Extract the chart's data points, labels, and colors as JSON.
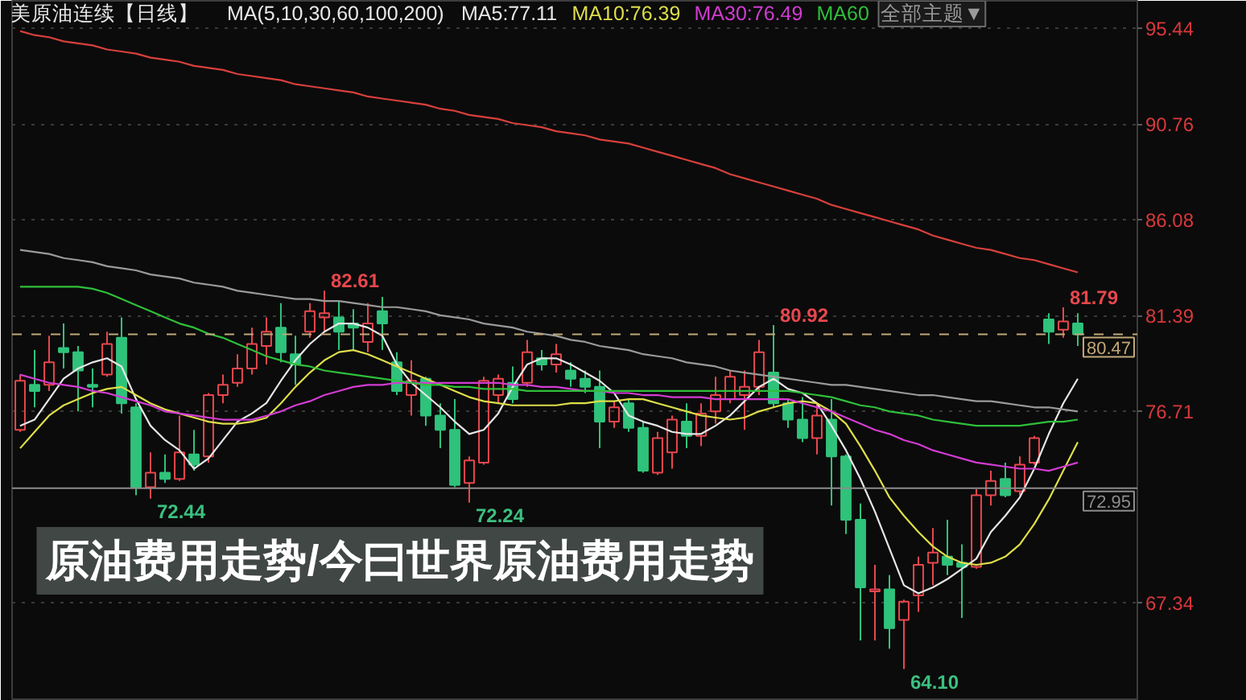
{
  "chart_data": {
    "type": "candlestick",
    "title": "原油费用走势/今曰世界原油费用走势",
    "subtitle": "美原油连续【日线】",
    "legend_title": "MA(5,10,30,60,100,200)",
    "legend": "top",
    "categories": [
      null,
      null,
      null,
      null,
      null,
      null,
      null,
      null,
      null,
      null,
      null,
      null,
      null,
      null,
      null,
      null,
      null,
      null,
      null,
      null,
      null,
      null,
      null,
      null,
      null,
      null,
      null,
      null,
      null,
      null,
      null,
      null,
      null,
      null,
      null,
      null,
      null,
      null,
      null,
      null,
      null,
      null,
      null,
      null,
      null,
      null,
      null,
      null,
      null,
      null,
      null,
      null,
      null,
      null,
      null,
      null,
      null,
      null,
      null,
      null,
      null,
      null,
      null,
      null,
      null,
      null,
      null,
      null,
      null,
      null,
      null,
      null,
      null,
      null
    ],
    "ohlc": [
      [
        75.8,
        78.5,
        75.7,
        78.2
      ],
      [
        78.0,
        79.7,
        76.9,
        77.7
      ],
      [
        78.0,
        80.4,
        77.7,
        79.1
      ],
      [
        79.8,
        81.0,
        78.8,
        79.6
      ],
      [
        79.6,
        79.9,
        76.7,
        78.7
      ],
      [
        78.0,
        78.8,
        76.9,
        77.9
      ],
      [
        78.5,
        80.6,
        78.4,
        80.0
      ],
      [
        80.3,
        81.3,
        76.6,
        77.1
      ],
      [
        76.9,
        77.1,
        72.6,
        73.0
      ],
      [
        73.0,
        74.7,
        72.44,
        73.7
      ],
      [
        73.7,
        74.6,
        73.2,
        73.4
      ],
      [
        73.4,
        76.5,
        73.3,
        74.7
      ],
      [
        74.6,
        75.8,
        73.8,
        74.1
      ],
      [
        74.5,
        77.6,
        74.2,
        77.5
      ],
      [
        77.5,
        78.5,
        77.1,
        78.0
      ],
      [
        78.1,
        79.5,
        77.9,
        78.8
      ],
      [
        78.8,
        80.8,
        78.5,
        80.0
      ],
      [
        79.9,
        81.3,
        79.0,
        80.6
      ],
      [
        80.8,
        82.0,
        79.1,
        79.6
      ],
      [
        79.5,
        80.4,
        78.0,
        79.0
      ],
      [
        80.6,
        82.0,
        80.3,
        81.6
      ],
      [
        81.3,
        82.61,
        80.6,
        81.5
      ],
      [
        81.3,
        82.1,
        79.7,
        80.6
      ],
      [
        81.0,
        81.7,
        79.7,
        80.8
      ],
      [
        80.1,
        82.0,
        79.6,
        81.0
      ],
      [
        81.6,
        82.3,
        79.7,
        81.0
      ],
      [
        79.1,
        79.6,
        77.5,
        77.7
      ],
      [
        77.5,
        79.2,
        76.5,
        78.2
      ],
      [
        78.3,
        78.4,
        76.0,
        76.5
      ],
      [
        76.5,
        77.1,
        74.9,
        75.8
      ],
      [
        75.8,
        77.3,
        73.0,
        73.1
      ],
      [
        73.2,
        74.5,
        72.24,
        74.3
      ],
      [
        74.2,
        78.4,
        74.1,
        78.2
      ],
      [
        77.5,
        78.5,
        77.1,
        78.3
      ],
      [
        78.1,
        78.9,
        77.1,
        77.3
      ],
      [
        78.1,
        80.2,
        77.9,
        79.6
      ],
      [
        79.3,
        79.7,
        78.7,
        79.0
      ],
      [
        79.0,
        80.0,
        78.6,
        79.5
      ],
      [
        78.7,
        79.1,
        77.9,
        78.3
      ],
      [
        78.3,
        78.7,
        77.6,
        77.9
      ],
      [
        77.9,
        78.7,
        74.9,
        76.2
      ],
      [
        76.2,
        77.2,
        75.9,
        76.9
      ],
      [
        77.1,
        77.3,
        75.7,
        75.9
      ],
      [
        75.9,
        76.2,
        73.7,
        73.8
      ],
      [
        73.7,
        75.7,
        73.6,
        75.4
      ],
      [
        74.7,
        76.5,
        73.9,
        76.3
      ],
      [
        76.2,
        77.1,
        74.9,
        75.5
      ],
      [
        75.5,
        77.1,
        75.0,
        76.6
      ],
      [
        76.7,
        78.4,
        76.1,
        77.5
      ],
      [
        77.3,
        78.7,
        77.1,
        78.4
      ],
      [
        77.5,
        78.7,
        75.8,
        77.9
      ],
      [
        77.9,
        80.2,
        77.5,
        79.6
      ],
      [
        78.6,
        80.92,
        76.9,
        77.1
      ],
      [
        77.1,
        77.3,
        75.9,
        76.3
      ],
      [
        76.3,
        77.4,
        75.2,
        75.4
      ],
      [
        75.4,
        77.1,
        74.6,
        76.5
      ],
      [
        76.3,
        77.3,
        72.1,
        74.5
      ],
      [
        74.5,
        74.6,
        70.7,
        71.4
      ],
      [
        71.4,
        72.2,
        65.5,
        68.1
      ],
      [
        67.9,
        69.2,
        65.5,
        68.0
      ],
      [
        68.0,
        68.7,
        65.1,
        66.1
      ],
      [
        66.5,
        67.5,
        64.1,
        67.4
      ],
      [
        67.7,
        69.6,
        66.9,
        69.2
      ],
      [
        69.3,
        71.0,
        68.2,
        69.8
      ],
      [
        69.6,
        71.4,
        68.7,
        69.2
      ],
      [
        69.3,
        70.2,
        66.6,
        69.1
      ],
      [
        69.1,
        72.9,
        69.0,
        72.6
      ],
      [
        72.6,
        73.8,
        72.1,
        73.3
      ],
      [
        73.4,
        74.2,
        72.5,
        72.6
      ],
      [
        72.8,
        74.5,
        72.6,
        74.1
      ],
      [
        74.2,
        75.5,
        74.1,
        75.4
      ],
      [
        81.2,
        81.5,
        80.0,
        80.6
      ],
      [
        80.7,
        81.79,
        80.3,
        81.1
      ],
      [
        81.0,
        81.5,
        79.9,
        80.47
      ]
    ],
    "value_labels": [
      null,
      null,
      null,
      null,
      null,
      null,
      null,
      null,
      null,
      "72.44",
      null,
      null,
      null,
      null,
      null,
      null,
      null,
      null,
      null,
      null,
      null,
      "82.61",
      null,
      null,
      null,
      null,
      null,
      null,
      null,
      null,
      null,
      "72.24",
      null,
      null,
      null,
      null,
      null,
      null,
      null,
      null,
      null,
      null,
      null,
      null,
      null,
      null,
      null,
      null,
      null,
      null,
      null,
      null,
      "80.92",
      null,
      null,
      null,
      null,
      null,
      null,
      null,
      null,
      "64.10",
      null,
      null,
      null,
      null,
      null,
      null,
      null,
      null,
      null,
      null,
      "81.79",
      null
    ],
    "colors": [
      "#e8474c",
      "#2fc27b",
      "#e8474c",
      "#2fc27b",
      "#2fc27b",
      "#2fc27b",
      "#e8474c",
      "#2fc27b",
      "#2fc27b",
      "#e8474c",
      "#2fc27b",
      "#e8474c",
      "#2fc27b",
      "#e8474c",
      "#e8474c",
      "#e8474c",
      "#e8474c",
      "#e8474c",
      "#2fc27b",
      "#2fc27b",
      "#e8474c",
      "#e8474c",
      "#2fc27b",
      "#2fc27b",
      "#e8474c",
      "#2fc27b",
      "#2fc27b",
      "#e8474c",
      "#2fc27b",
      "#2fc27b",
      "#2fc27b",
      "#e8474c",
      "#e8474c",
      "#e8474c",
      "#2fc27b",
      "#e8474c",
      "#2fc27b",
      "#e8474c",
      "#2fc27b",
      "#2fc27b",
      "#2fc27b",
      "#e8474c",
      "#2fc27b",
      "#2fc27b",
      "#e8474c",
      "#e8474c",
      "#2fc27b",
      "#e8474c",
      "#e8474c",
      "#e8474c",
      "#e8474c",
      "#e8474c",
      "#2fc27b",
      "#2fc27b",
      "#2fc27b",
      "#e8474c",
      "#2fc27b",
      "#2fc27b",
      "#2fc27b",
      "#e8474c",
      "#2fc27b",
      "#e8474c",
      "#e8474c",
      "#e8474c",
      "#2fc27b",
      "#2fc27b",
      "#e8474c",
      "#e8474c",
      "#2fc27b",
      "#e8474c",
      "#e8474c",
      "#2fc27b",
      "#e8474c",
      "#2fc27b"
    ],
    "series": [
      {
        "type": "line",
        "name": "MA5:77.11",
        "color": "#e6e6e6",
        "values": [
          76.0,
          76.3,
          77.3,
          78.3,
          78.8,
          79.1,
          79.3,
          78.9,
          77.3,
          76.0,
          75.3,
          74.8,
          73.9,
          74.4,
          75.3,
          76.2,
          76.6,
          77.11,
          78.2,
          79.2,
          80.0,
          80.6,
          81.0,
          81.0,
          80.8,
          80.4,
          79.0,
          78.1,
          77.5,
          76.9,
          76.2,
          75.6,
          75.8,
          76.6,
          77.9,
          79.0,
          79.3,
          79.3,
          79.0,
          78.6,
          78.2,
          77.6,
          76.5,
          76.2,
          76.0,
          75.7,
          75.6,
          75.6,
          76.0,
          76.5,
          77.2,
          77.9,
          78.3,
          77.8,
          77.6,
          77.1,
          76.0,
          74.8,
          73.4,
          71.8,
          70.0,
          68.2,
          67.8,
          68.1,
          68.5,
          69.0,
          69.5,
          70.8,
          71.6,
          72.5,
          73.9,
          75.6,
          77.1,
          78.3
        ]
      },
      {
        "type": "line",
        "name": "MA10:76.39",
        "color": "#dede4a",
        "values": [
          74.9,
          75.7,
          76.5,
          77.0,
          77.3,
          77.6,
          77.8,
          77.9,
          77.5,
          77.1,
          76.8,
          76.6,
          76.4,
          76.2,
          76.1,
          76.1,
          76.2,
          76.39,
          77.1,
          77.9,
          78.6,
          79.2,
          79.6,
          79.7,
          79.5,
          79.2,
          78.9,
          78.6,
          78.3,
          78.0,
          77.7,
          77.4,
          77.2,
          77.1,
          77.0,
          77.0,
          77.0,
          77.0,
          77.1,
          77.1,
          77.2,
          77.2,
          77.3,
          77.3,
          77.1,
          76.9,
          76.7,
          76.5,
          76.4,
          76.3,
          76.4,
          76.7,
          76.9,
          77.1,
          77.2,
          77.1,
          76.7,
          76.1,
          75.0,
          73.8,
          72.5,
          71.6,
          70.8,
          70.1,
          69.6,
          69.3,
          69.2,
          69.3,
          69.6,
          70.2,
          71.2,
          72.4,
          73.8,
          75.2
        ]
      },
      {
        "type": "line",
        "name": "MA30:76.49",
        "color": "#d23cd2",
        "values": [
          78.5,
          78.3,
          78.1,
          78.0,
          77.9,
          77.7,
          77.6,
          77.4,
          77.2,
          77.0,
          76.7,
          76.6,
          76.5,
          76.4,
          76.3,
          76.3,
          76.3,
          76.49,
          76.7,
          77.0,
          77.2,
          77.5,
          77.7,
          77.9,
          78.0,
          78.0,
          78.1,
          78.1,
          78.1,
          78.1,
          78.1,
          78.1,
          78.1,
          78.1,
          78.0,
          78.0,
          77.9,
          77.9,
          77.8,
          77.7,
          77.7,
          77.6,
          77.6,
          77.5,
          77.5,
          77.4,
          77.4,
          77.4,
          77.3,
          77.3,
          77.3,
          77.3,
          77.3,
          77.3,
          77.1,
          76.9,
          76.7,
          76.4,
          76.1,
          75.8,
          75.6,
          75.3,
          75.1,
          74.8,
          74.6,
          74.4,
          74.2,
          74.1,
          74.0,
          73.9,
          73.9,
          73.8,
          74.0,
          74.2
        ]
      },
      {
        "type": "line",
        "name": "MA60",
        "color": "#2fbf3a",
        "values": [
          82.8,
          82.8,
          82.8,
          82.8,
          82.8,
          82.7,
          82.5,
          82.2,
          81.9,
          81.6,
          81.3,
          81.0,
          80.8,
          80.5,
          80.3,
          80.0,
          79.7,
          79.4,
          79.2,
          79.0,
          78.9,
          78.7,
          78.6,
          78.5,
          78.4,
          78.3,
          78.2,
          78.1,
          78.0,
          78.0,
          77.9,
          77.9,
          77.8,
          77.8,
          77.8,
          77.7,
          77.7,
          77.7,
          77.7,
          77.7,
          77.7,
          77.7,
          77.7,
          77.7,
          77.7,
          77.7,
          77.7,
          77.7,
          77.7,
          77.7,
          77.7,
          77.7,
          77.7,
          77.7,
          77.6,
          77.5,
          77.4,
          77.2,
          77.0,
          76.9,
          76.7,
          76.6,
          76.5,
          76.3,
          76.2,
          76.1,
          76.0,
          76.0,
          76.0,
          76.0,
          76.1,
          76.2,
          76.2,
          76.3
        ]
      },
      {
        "type": "line",
        "color": "#9a9a9a",
        "values": [
          84.6,
          84.5,
          84.4,
          84.2,
          84.1,
          84.0,
          83.8,
          83.7,
          83.6,
          83.4,
          83.3,
          83.2,
          83.0,
          82.9,
          82.8,
          82.6,
          82.5,
          82.4,
          82.3,
          82.2,
          82.2,
          82.1,
          82.1,
          82.0,
          81.9,
          81.8,
          81.8,
          81.7,
          81.6,
          81.4,
          81.3,
          81.2,
          81.0,
          80.9,
          80.8,
          80.6,
          80.5,
          80.4,
          80.2,
          80.1,
          79.9,
          79.8,
          79.7,
          79.5,
          79.4,
          79.3,
          79.1,
          79.0,
          78.9,
          78.7,
          78.6,
          78.5,
          78.4,
          78.3,
          78.2,
          78.1,
          78.0,
          78.0,
          77.9,
          77.8,
          77.7,
          77.6,
          77.5,
          77.5,
          77.4,
          77.3,
          77.2,
          77.2,
          77.1,
          77.0,
          76.9,
          76.9,
          76.8,
          76.7
        ]
      },
      {
        "type": "line",
        "color": "#d8403c",
        "values": [
          95.3,
          95.1,
          95.0,
          94.8,
          94.7,
          94.6,
          94.4,
          94.3,
          94.2,
          94.0,
          93.9,
          93.8,
          93.6,
          93.5,
          93.4,
          93.2,
          93.1,
          93.0,
          92.9,
          92.7,
          92.6,
          92.5,
          92.4,
          92.3,
          92.1,
          92.0,
          91.9,
          91.8,
          91.7,
          91.5,
          91.4,
          91.2,
          91.1,
          91.0,
          90.8,
          90.7,
          90.6,
          90.4,
          90.3,
          90.2,
          90.0,
          89.9,
          89.8,
          89.6,
          89.4,
          89.2,
          89.0,
          88.8,
          88.6,
          88.3,
          88.1,
          87.9,
          87.7,
          87.5,
          87.3,
          87.1,
          86.8,
          86.6,
          86.4,
          86.2,
          86.0,
          85.8,
          85.6,
          85.3,
          85.1,
          84.9,
          84.7,
          84.6,
          84.4,
          84.2,
          84.1,
          83.9,
          83.7,
          83.5
        ]
      }
    ],
    "ylim": [
      62.55,
      96.78
    ],
    "yticks": [
      95.44,
      90.76,
      86.08,
      81.39,
      76.71,
      67.34
    ],
    "tick_labels": "y",
    "grid": "y",
    "ref_lines": [
      {
        "axis": "y",
        "value": 72.95,
        "label": "72.95",
        "color": "#8c8c8c",
        "line_style": "solid"
      },
      {
        "axis": "y",
        "value": 80.47,
        "label": "80.47",
        "color": "#c2a878",
        "line_style": "dashed"
      }
    ],
    "annotations": [
      "全部主题▼"
    ]
  }
}
